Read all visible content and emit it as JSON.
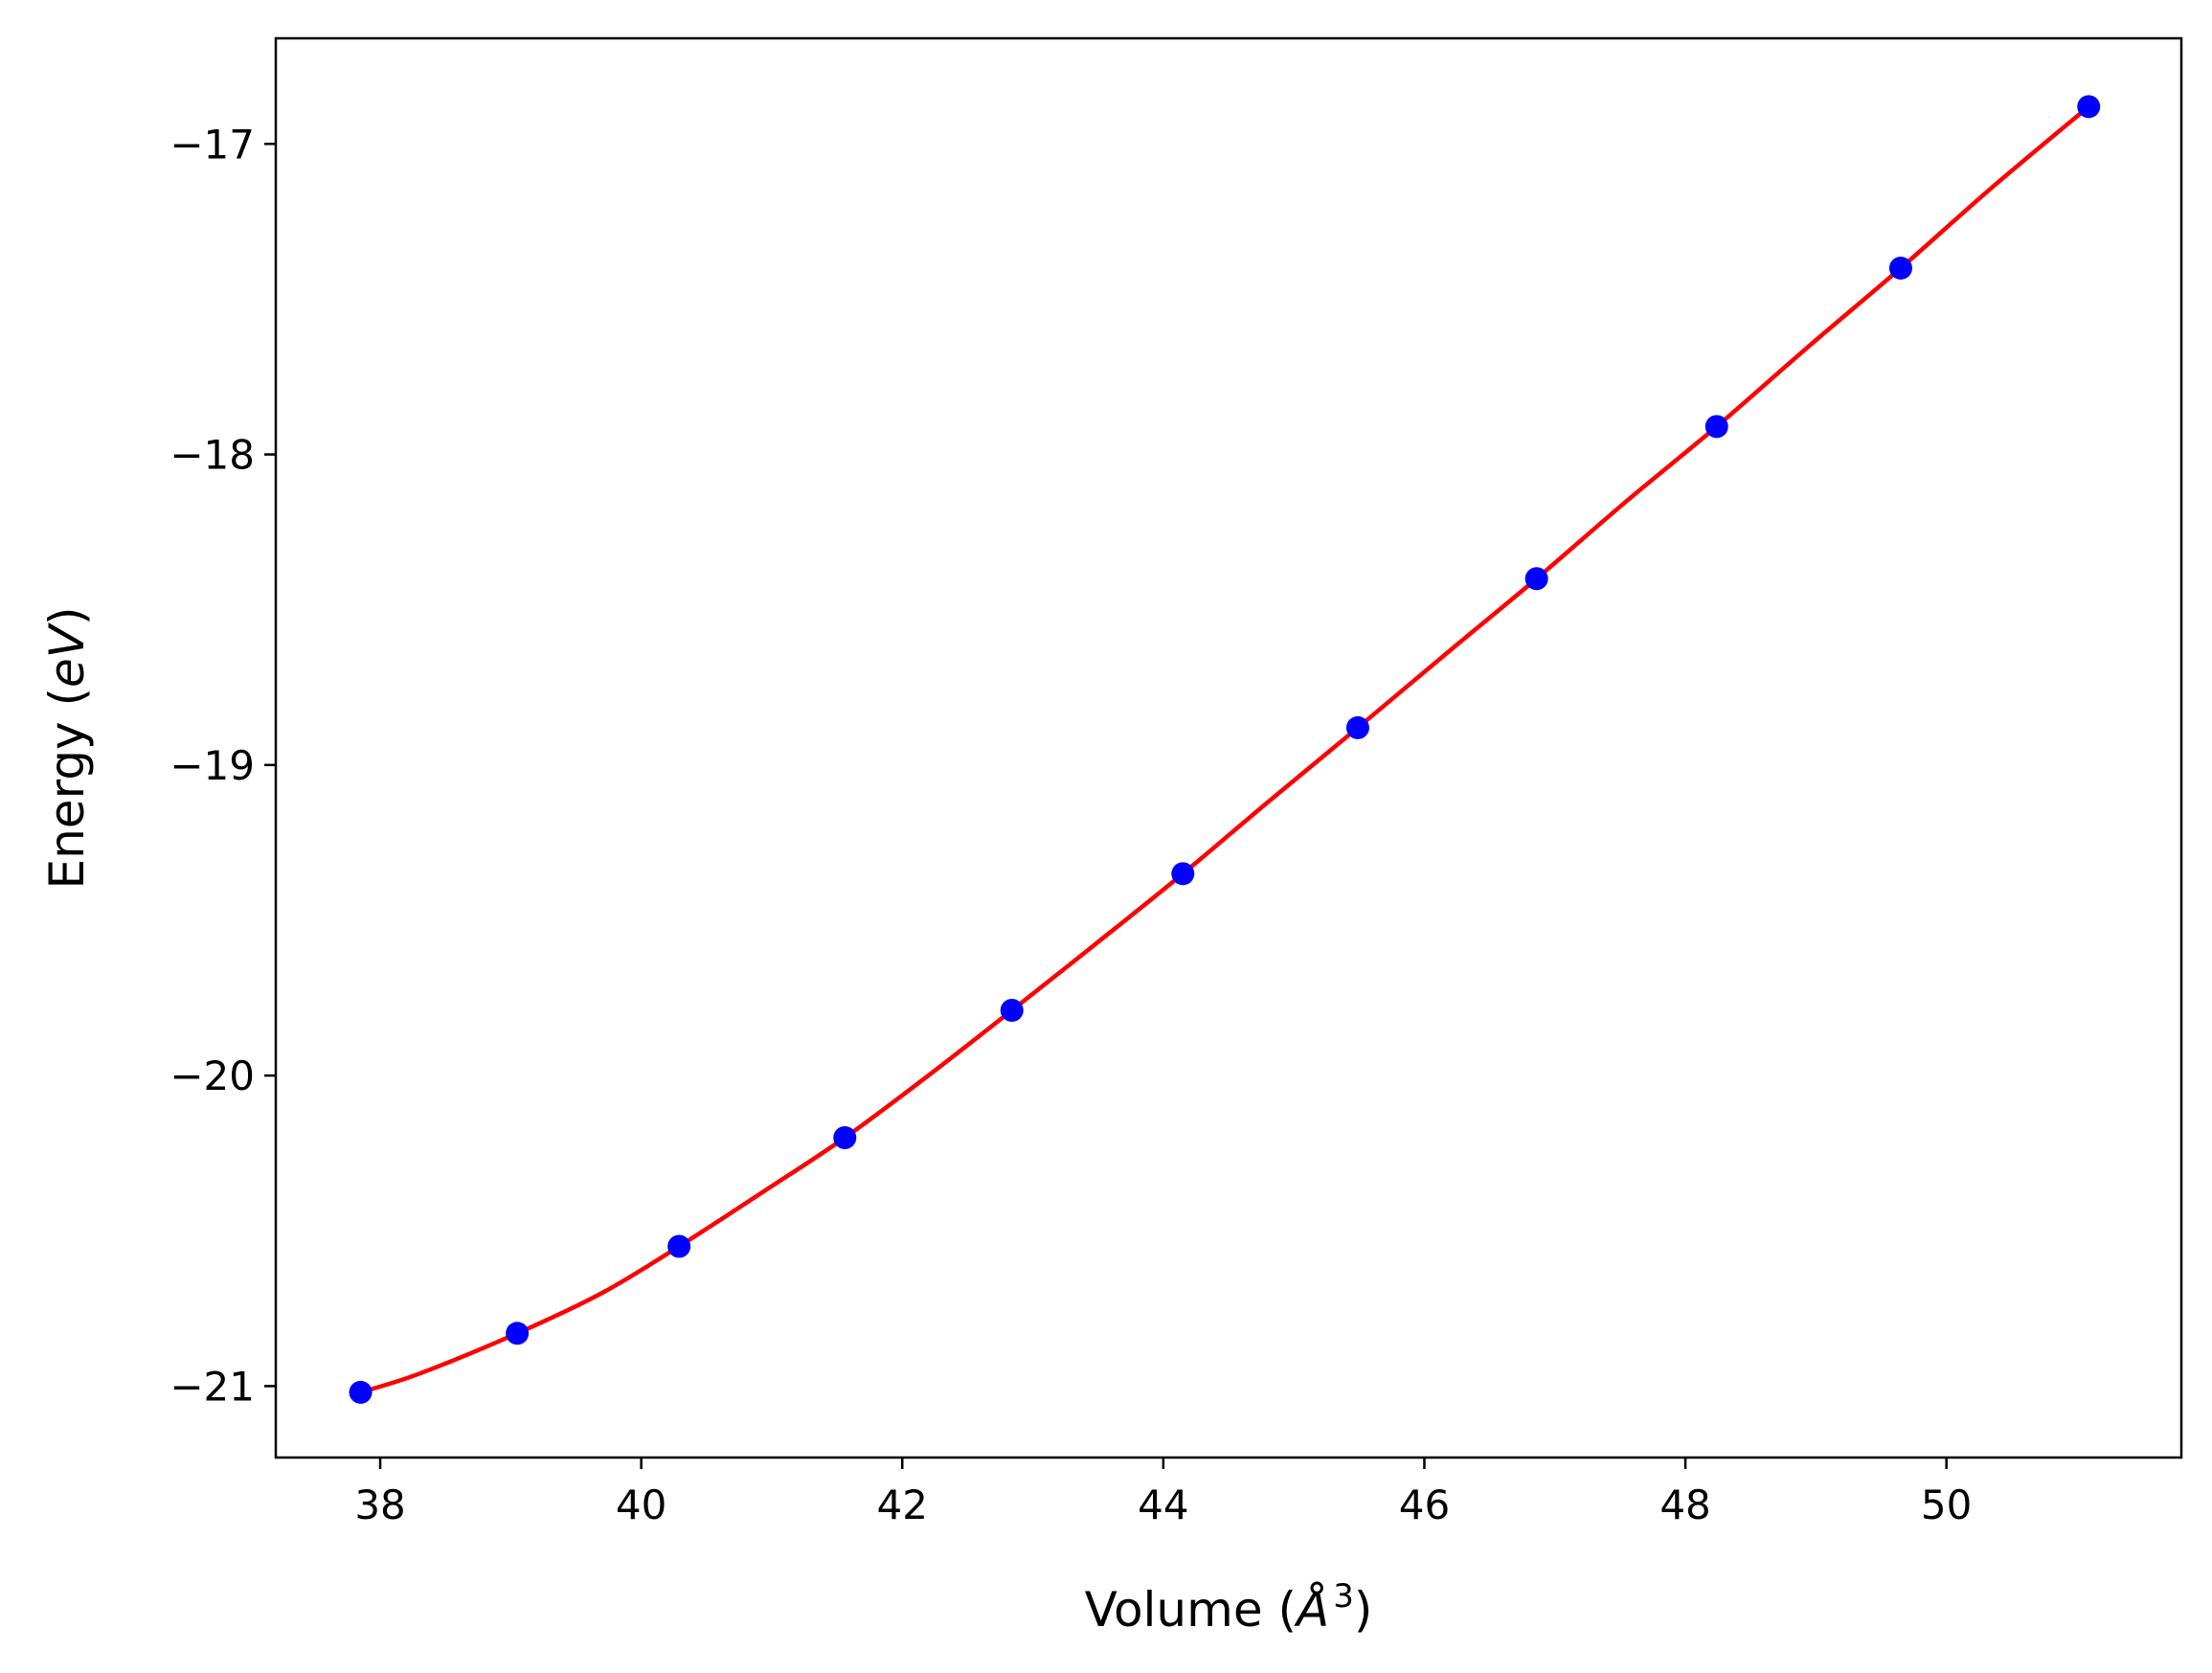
{
  "chart_data": {
    "type": "line",
    "title": "",
    "xlabel": {
      "text": "Volume (",
      "symbol": "Å",
      "sup": "3",
      "close": ")"
    },
    "ylabel": {
      "text": "Energy (",
      "symbol": "eV",
      "close": ")"
    },
    "xlim": [
      37.2,
      51.8
    ],
    "ylim": [
      -21.23,
      -16.66
    ],
    "xticks": [
      38,
      40,
      42,
      44,
      46,
      48,
      50
    ],
    "yticks": [
      -21,
      -20,
      -19,
      -18,
      -17
    ],
    "xtick_labels": [
      "38",
      "40",
      "42",
      "44",
      "46",
      "48",
      "50"
    ],
    "ytick_labels": [
      "−21",
      "−20",
      "−19",
      "−18",
      "−17"
    ],
    "grid": false,
    "series": [
      {
        "kind": "points",
        "color": "#0000ff",
        "x": [
          37.85,
          39.05,
          40.29,
          41.56,
          42.84,
          44.15,
          45.49,
          46.86,
          48.24,
          49.65,
          51.09
        ],
        "y": [
          -21.02,
          -20.83,
          -20.55,
          -20.2,
          -19.79,
          -19.35,
          -18.88,
          -18.4,
          -17.91,
          -17.4,
          -16.88
        ]
      },
      {
        "kind": "fit",
        "color": "#ff0000",
        "x": [
          37.85,
          38.3,
          39.05,
          39.7,
          40.29,
          40.95,
          41.56,
          42.2,
          42.84,
          43.5,
          44.15,
          44.8,
          45.49,
          46.2,
          46.86,
          47.55,
          48.24,
          48.95,
          49.65,
          50.35,
          51.09
        ],
        "y": [
          -21.02,
          -20.96,
          -20.83,
          -20.7,
          -20.55,
          -20.37,
          -20.2,
          -20.0,
          -19.79,
          -19.57,
          -19.35,
          -19.12,
          -18.88,
          -18.63,
          -18.4,
          -18.15,
          -17.91,
          -17.65,
          -17.4,
          -17.14,
          -16.88
        ]
      }
    ]
  }
}
